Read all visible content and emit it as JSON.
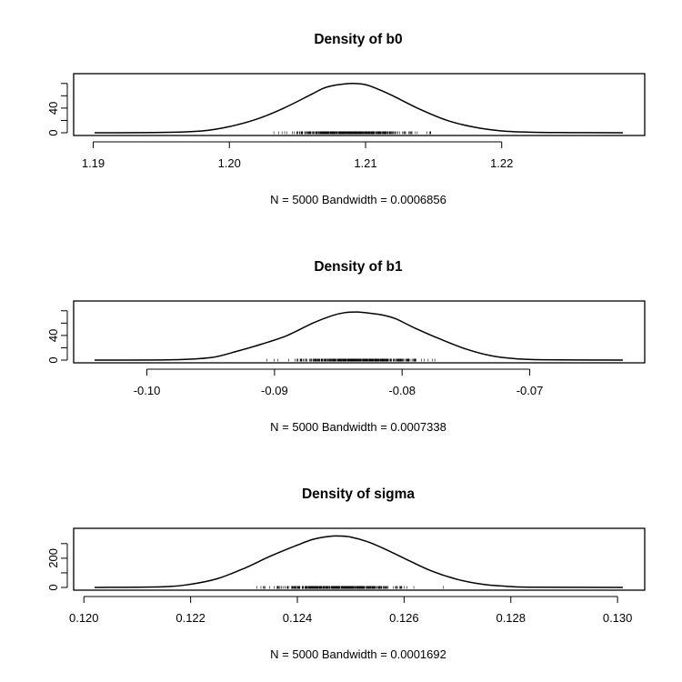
{
  "chart_data": [
    {
      "type": "line",
      "title": "Density of b0",
      "subtitle": "N = 5000   Bandwidth = 0.0006856",
      "xlim": [
        1.1901,
        1.2289
      ],
      "ylim": [
        0,
        90
      ],
      "xticks": [
        1.19,
        1.2,
        1.21,
        1.22
      ],
      "xtick_labels": [
        "1.19",
        "1.20",
        "1.21",
        "1.22"
      ],
      "yticks": [
        0,
        20,
        40,
        60,
        80
      ],
      "ytick_labels": [
        "0",
        "",
        "40",
        "",
        ""
      ],
      "series": [
        {
          "x": [
            1.1901,
            1.195,
            1.198,
            1.2,
            1.202,
            1.204,
            1.206,
            1.207,
            1.208,
            1.209,
            1.21,
            1.211,
            1.212,
            1.214,
            1.216,
            1.218,
            1.22,
            1.222,
            1.224,
            1.2289
          ],
          "y": [
            0,
            0.5,
            3,
            10,
            22,
            40,
            62,
            73,
            78,
            80,
            78,
            70,
            60,
            38,
            20,
            9,
            3,
            1,
            0.3,
            0
          ]
        }
      ]
    },
    {
      "type": "line",
      "title": "Density of b1",
      "subtitle": "N = 5000   Bandwidth = 0.0007338",
      "xlim": [
        -0.1041,
        -0.0627
      ],
      "ylim": [
        0,
        90
      ],
      "xticks": [
        -0.1,
        -0.09,
        -0.08,
        -0.07
      ],
      "xtick_labels": [
        "-0.10",
        "-0.09",
        "-0.08",
        "-0.07"
      ],
      "yticks": [
        0,
        20,
        40,
        60,
        80
      ],
      "ytick_labels": [
        "0",
        "",
        "40",
        "",
        ""
      ],
      "series": [
        {
          "x": [
            -0.1041,
            -0.098,
            -0.095,
            -0.093,
            -0.091,
            -0.089,
            -0.087,
            -0.0855,
            -0.0845,
            -0.0835,
            -0.0825,
            -0.0815,
            -0.0805,
            -0.079,
            -0.077,
            -0.075,
            -0.073,
            -0.071,
            -0.069,
            -0.0627
          ],
          "y": [
            0,
            0.5,
            4,
            14,
            26,
            40,
            60,
            72,
            77,
            78,
            76,
            73,
            67,
            52,
            34,
            18,
            7,
            2,
            0.5,
            0
          ]
        }
      ]
    },
    {
      "type": "line",
      "title": "Density of sigma",
      "subtitle": "N = 5000   Bandwidth = 0.0001692",
      "xlim": [
        0.1202,
        0.1301
      ],
      "ylim": [
        0,
        380
      ],
      "xticks": [
        0.12,
        0.122,
        0.124,
        0.126,
        0.128,
        0.13
      ],
      "xtick_labels": [
        "0.120",
        "0.122",
        "0.124",
        "0.126",
        "0.128",
        "0.130"
      ],
      "yticks": [
        0,
        100,
        200,
        300
      ],
      "ytick_labels": [
        "0",
        "",
        "200",
        ""
      ],
      "series": [
        {
          "x": [
            0.1202,
            0.1215,
            0.122,
            0.1225,
            0.123,
            0.1235,
            0.124,
            0.1243,
            0.1246,
            0.1248,
            0.125,
            0.1253,
            0.1256,
            0.126,
            0.1265,
            0.127,
            0.1275,
            0.128,
            0.1285,
            0.1301
          ],
          "y": [
            0,
            5,
            22,
            60,
            130,
            215,
            290,
            330,
            350,
            352,
            345,
            315,
            270,
            200,
            115,
            55,
            20,
            6,
            1.5,
            0
          ]
        }
      ]
    }
  ]
}
